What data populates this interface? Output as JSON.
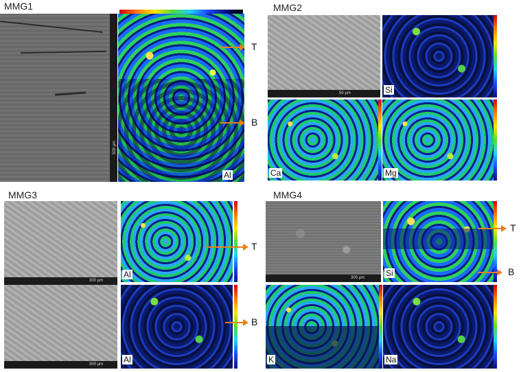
{
  "panels": {
    "mmg1": {
      "title": "MMG1",
      "scale": "500 µm",
      "element": "Al",
      "arrow_top": "T",
      "arrow_bottom": "B"
    },
    "mmg2": {
      "title": "MMG2",
      "scale": "50 µm",
      "elements": [
        "Si",
        "Ca",
        "Mg"
      ]
    },
    "mmg3": {
      "title": "MMG3",
      "scale_top": "300 µm",
      "scale_bottom": "300 µm",
      "elements": [
        "Al",
        "Al"
      ],
      "arrow_top": "T",
      "arrow_bottom": "B"
    },
    "mmg4": {
      "title": "MMG4",
      "scale": "300 µm",
      "elements": [
        "Si",
        "K",
        "Na"
      ],
      "arrow_top": "T",
      "arrow_bottom": "B"
    }
  },
  "colors": {
    "arrow": "#e8801a"
  }
}
